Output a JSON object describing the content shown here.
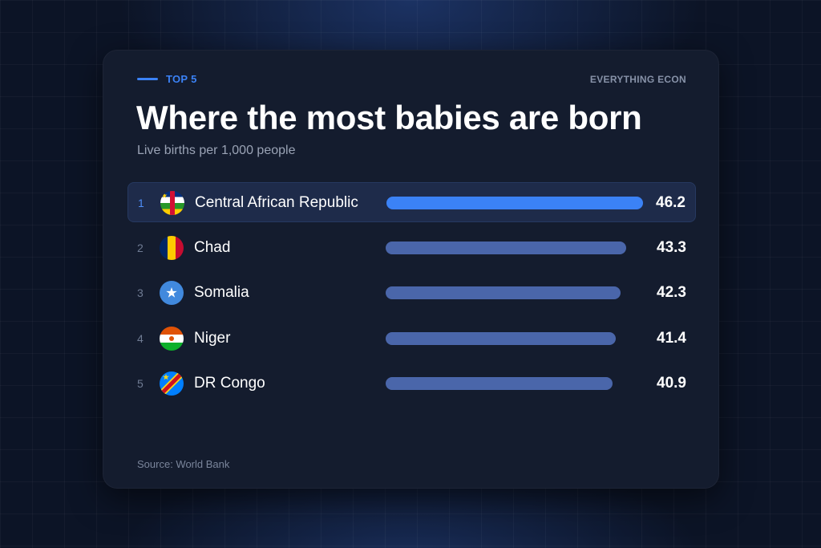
{
  "header": {
    "eyebrow": "TOP 5",
    "brand": "EVERYTHING ECON",
    "title": "Where the most babies are born",
    "subtitle": "Live births per 1,000 people"
  },
  "footer": {
    "source": "Source: World Bank"
  },
  "colors": {
    "accent": "#3b82f6",
    "bar": "#4a66aa",
    "card": "#141c2e",
    "background": "#0c1426"
  },
  "chart_data": {
    "type": "bar",
    "orientation": "horizontal",
    "title": "Where the most babies are born",
    "subtitle": "Live births per 1,000 people",
    "categories": [
      "Central African Republic",
      "Chad",
      "Somalia",
      "Niger",
      "DR Congo"
    ],
    "values": [
      46.2,
      43.3,
      42.3,
      41.4,
      40.9
    ],
    "value_labels": [
      "46.2",
      "43.3",
      "42.3",
      "41.4",
      "40.9"
    ],
    "ranks": [
      "1",
      "2",
      "3",
      "4",
      "5"
    ],
    "flag_icons": [
      "car-flag-icon",
      "chad-flag-icon",
      "somalia-flag-icon",
      "niger-flag-icon",
      "drcongo-flag-icon"
    ],
    "highlighted_index": 0,
    "xlim": [
      0,
      46.2
    ],
    "grid": false,
    "legend": "none"
  }
}
